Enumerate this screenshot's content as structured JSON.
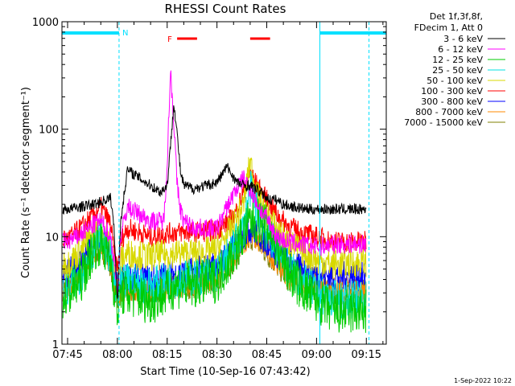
{
  "chart_data": {
    "type": "line",
    "title": "RHESSI Count Rates",
    "xlabel": "Start Time (10-Sep-16 07:43:42)",
    "ylabel": "Count Rate (s⁻¹ detector segment⁻¹)",
    "yscale": "log",
    "ylim": [
      1,
      1000
    ],
    "xlim_minutes": [
      -1.7,
      96
    ],
    "x_tick_labels": [
      {
        "label": "07:45",
        "minutes": 0
      },
      {
        "label": "08:00",
        "minutes": 15
      },
      {
        "label": "08:15",
        "minutes": 30
      },
      {
        "label": "08:30",
        "minutes": 45
      },
      {
        "label": "08:45",
        "minutes": 60
      },
      {
        "label": "09:00",
        "minutes": 75
      },
      {
        "label": "09:15",
        "minutes": 90
      }
    ],
    "y_tick_labels": [
      {
        "label": "1",
        "value": 1
      },
      {
        "label": "10",
        "value": 10
      },
      {
        "label": "100",
        "value": 100
      },
      {
        "label": "1000",
        "value": 1000
      }
    ],
    "legend_header": [
      "Det 1f,3f,8f,",
      "FDecim 1, Att 0"
    ],
    "series": [
      {
        "name": "3 - 6 keV",
        "color": "#000000",
        "x": [
          0,
          8,
          13,
          14,
          15,
          16,
          18,
          25,
          28,
          30,
          31,
          32,
          33,
          34,
          35,
          38,
          42,
          45,
          48,
          51,
          53,
          55,
          58,
          61,
          63,
          65,
          68,
          72,
          75,
          80,
          90
        ],
        "values": [
          18,
          20,
          23,
          12,
          2.5,
          14,
          42,
          30,
          26,
          30,
          70,
          180,
          90,
          40,
          30,
          28,
          30,
          32,
          45,
          32,
          30,
          30,
          26,
          22,
          22,
          20,
          19,
          18,
          18,
          18,
          18
        ]
      },
      {
        "name": "6 - 12 keV",
        "color": "#ff00ff",
        "x": [
          0,
          3,
          8,
          10,
          13,
          14,
          15,
          16,
          18,
          25,
          29,
          30,
          31,
          32,
          33,
          34,
          35,
          38,
          45,
          50,
          53,
          55,
          58,
          61,
          63,
          66,
          70,
          75,
          80,
          90
        ],
        "values": [
          9,
          10,
          13,
          14,
          10,
          6,
          3,
          10,
          19,
          14,
          14,
          50,
          350,
          120,
          30,
          18,
          14,
          12,
          12,
          25,
          35,
          28,
          18,
          13,
          10,
          9,
          8.5,
          8,
          8.5,
          8.5
        ]
      },
      {
        "name": "12 - 25 keV",
        "color": "#00cc00",
        "x": [
          0,
          4,
          8,
          10,
          13,
          14,
          15,
          16,
          18,
          25,
          30,
          32,
          35,
          38,
          45,
          50,
          55,
          58,
          61,
          63,
          66,
          70,
          75,
          80,
          90
        ],
        "values": [
          2.8,
          4,
          8,
          9,
          6,
          3.5,
          2,
          3,
          3,
          2.5,
          3,
          3.5,
          3.5,
          3.5,
          4,
          7,
          14,
          14,
          11,
          8,
          5,
          3.5,
          2.5,
          2,
          2
        ]
      },
      {
        "name": "25 - 50 keV",
        "color": "#00e0e0",
        "x": [
          0,
          4,
          8,
          10,
          13,
          14,
          15,
          16,
          18,
          25,
          32,
          38,
          45,
          50,
          53,
          55,
          57,
          60,
          63,
          66,
          70,
          75,
          80,
          90
        ],
        "values": [
          3,
          4.5,
          8,
          9.5,
          6.5,
          4,
          2.5,
          3.5,
          3.8,
          3.5,
          4,
          4.2,
          4.5,
          8,
          12,
          28,
          18,
          11,
          8,
          5.5,
          4,
          3,
          2.6,
          2.6
        ]
      },
      {
        "name": "50 - 100 keV",
        "color": "#d8d800",
        "x": [
          0,
          4,
          8,
          10,
          13,
          14,
          15,
          16,
          18,
          25,
          32,
          38,
          45,
          50,
          53,
          55,
          57,
          60,
          63,
          66,
          70,
          75,
          80,
          90
        ],
        "values": [
          5.5,
          7.5,
          11,
          12,
          8,
          5,
          3.5,
          6,
          7,
          6.5,
          7,
          7,
          7.5,
          13,
          20,
          50,
          25,
          16,
          12,
          9,
          7.5,
          6,
          5.5,
          5.8
        ]
      },
      {
        "name": "100 - 300 keV",
        "color": "#ff0000",
        "x": [
          0,
          4,
          8,
          10,
          13,
          14,
          15,
          16,
          18,
          25,
          32,
          38,
          45,
          50,
          53,
          55,
          57,
          60,
          63,
          66,
          70,
          75,
          80,
          90
        ],
        "values": [
          9.5,
          12,
          16,
          19,
          13,
          7,
          5,
          9,
          12,
          10,
          11,
          11,
          11.5,
          15,
          26,
          40,
          30,
          22,
          16,
          13,
          11,
          10,
          9,
          9
        ]
      },
      {
        "name": "300 - 800 keV",
        "color": "#0000ff",
        "x": [
          0,
          4,
          8,
          10,
          13,
          14,
          15,
          16,
          18,
          25,
          32,
          38,
          45,
          50,
          53,
          55,
          57,
          60,
          63,
          66,
          70,
          75,
          80,
          90
        ],
        "values": [
          4.5,
          6,
          9,
          10,
          7,
          4.2,
          3.5,
          4,
          4.2,
          4,
          4.5,
          4.7,
          5.5,
          8,
          10,
          12,
          11,
          9,
          7,
          6,
          5,
          4.5,
          4.3,
          4.3
        ]
      },
      {
        "name": "800 - 7000 keV",
        "color": "#ff8800",
        "x": [
          0,
          4,
          8,
          10,
          13,
          14,
          15,
          16,
          18,
          25,
          32,
          38,
          45,
          50,
          53,
          55,
          57,
          60,
          63,
          66,
          70,
          75,
          80,
          90
        ],
        "values": [
          3.5,
          5,
          7.5,
          8.5,
          6,
          3.6,
          3,
          3.2,
          3.3,
          3.2,
          3.5,
          3.7,
          4.2,
          6.5,
          9,
          10.5,
          9.5,
          7.5,
          6,
          4.5,
          3.8,
          3.5,
          3.3,
          3.3
        ]
      },
      {
        "name": "7000 - 15000 keV",
        "color": "#808000",
        "x": [
          0,
          4,
          8,
          10,
          13,
          14,
          15,
          16,
          18,
          25,
          32,
          38,
          45,
          50,
          53,
          55,
          57,
          60,
          63,
          66,
          70,
          75,
          80,
          90
        ],
        "values": [
          3.3,
          4.6,
          7,
          8,
          5.5,
          3.4,
          2.8,
          3,
          3.1,
          3,
          3.3,
          3.5,
          4,
          6,
          8.5,
          10,
          9,
          7,
          5.5,
          4.2,
          3.6,
          3.3,
          3.1,
          3.1
        ]
      }
    ],
    "annotations": {
      "night_label": "N",
      "flare_label": "F",
      "night_intervals_minutes": [
        [
          -1.7,
          15.5
        ],
        [
          76,
          96
        ]
      ],
      "flare_intervals_minutes": [
        [
          33,
          39
        ],
        [
          55,
          61
        ]
      ],
      "dashed_markers_minutes": [
        15.5,
        90.8
      ],
      "solid_markers_minutes": [
        -1.7,
        76
      ]
    }
  },
  "footer": {
    "timestamp": "1-Sep-2022 10:22"
  }
}
